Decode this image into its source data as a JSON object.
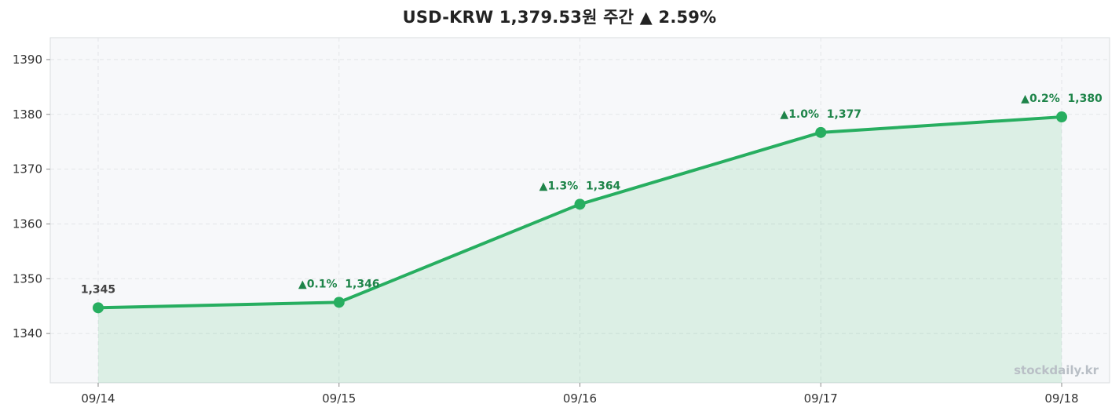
{
  "chart_data": {
    "type": "area",
    "title": "USD-KRW 1,379.53원 주간 ▲ 2.59%",
    "xlabel": "",
    "ylabel": "",
    "categories": [
      "09/14",
      "09/15",
      "09/16",
      "09/17",
      "09/18"
    ],
    "values": [
      1344.7,
      1345.7,
      1363.6,
      1376.7,
      1379.53
    ],
    "data_labels": [
      "1,345",
      "▲0.1%  1,346",
      "▲1.3%  1,364",
      "▲1.0%  1,377",
      "▲0.2%  1,380"
    ],
    "ylim": [
      1331,
      1394
    ],
    "yticks": [
      1340,
      1350,
      1360,
      1370,
      1380,
      1390
    ],
    "grid": true,
    "legend": "none",
    "watermark": "stockdaily.kr",
    "colors": {
      "line": "#27ae60",
      "fill": "#27ae60",
      "up_label": "#1e8449",
      "neutral_label": "#444444",
      "plot_background": "#f7f8fa",
      "grid": "#e3e5e8",
      "frame": "#d9dcdf"
    }
  }
}
